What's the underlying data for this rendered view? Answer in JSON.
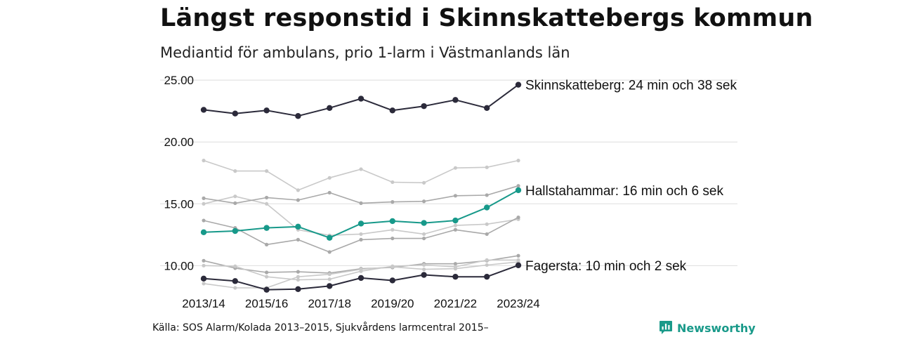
{
  "header": {
    "title": "Längst responstid i Skinnskattebergs kommun",
    "subtitle": "Mediantid för ambulans, prio 1-larm i Västmanlands län"
  },
  "footer": {
    "source": "Källa: SOS Alarm/Kolada 2013–2015, Sjukvårdens larmcentral 2015–",
    "brand": "Newsworthy"
  },
  "colors": {
    "highlight_dark": "#2b2a3a",
    "highlight_teal": "#17998a",
    "background_light": "#c9c9c9",
    "background_mid": "#a9a9a9",
    "grid": "#dddddd",
    "brand": "#1a9a8a"
  },
  "chart_data": {
    "type": "line",
    "x": [
      "2013/14",
      "2014/15",
      "2015/16",
      "2016/17",
      "2017/18",
      "2018/19",
      "2019/20",
      "2020/21",
      "2021/22",
      "2022/23",
      "2023/24"
    ],
    "x_tick_labels": [
      "2013/14",
      "2015/16",
      "2017/18",
      "2019/20",
      "2021/22",
      "2023/24"
    ],
    "y_tick_labels": [
      "10.00",
      "15.00",
      "20.00",
      "25.00"
    ],
    "ylim": [
      7.6,
      25.6
    ],
    "grid": true,
    "series": [
      {
        "values": [
          18.5,
          17.65,
          17.65,
          16.1,
          17.1,
          17.8,
          16.75,
          16.7,
          17.9,
          17.95,
          18.5
        ],
        "color": "#c9c9c9",
        "highlight": false
      },
      {
        "values": [
          15.0,
          15.6,
          15.0,
          12.9,
          12.45,
          12.55,
          12.9,
          12.55,
          13.25,
          13.35,
          13.75
        ],
        "color": "#c9c9c9",
        "highlight": false
      },
      {
        "values": [
          15.45,
          15.05,
          15.5,
          15.3,
          15.9,
          15.05,
          15.15,
          15.2,
          15.65,
          15.7,
          16.45
        ],
        "color": "#a9a9a9",
        "highlight": false
      },
      {
        "values": [
          13.65,
          13.05,
          11.7,
          12.1,
          11.1,
          12.1,
          12.2,
          12.2,
          12.9,
          12.55,
          13.9
        ],
        "color": "#a9a9a9",
        "highlight": false
      },
      {
        "values": [
          10.4,
          9.8,
          9.45,
          9.5,
          9.4,
          9.75,
          9.85,
          10.15,
          10.15,
          10.4,
          10.8
        ],
        "color": "#a9a9a9",
        "highlight": false
      },
      {
        "values": [
          10.0,
          9.95,
          9.1,
          8.85,
          8.9,
          9.55,
          9.95,
          10.05,
          9.9,
          10.45,
          10.45
        ],
        "color": "#c9c9c9",
        "highlight": false
      },
      {
        "values": [
          8.55,
          8.2,
          8.2,
          9.1,
          9.3,
          9.7,
          9.9,
          9.7,
          9.75,
          10.05,
          10.3
        ],
        "color": "#c9c9c9",
        "highlight": false
      },
      {
        "name": "Skinnskatteberg",
        "label": "Skinnskatteberg: 24 min och 38 sek",
        "values": [
          22.6,
          22.3,
          22.55,
          22.1,
          22.75,
          23.5,
          22.55,
          22.9,
          23.4,
          22.75,
          24.63
        ],
        "color": "#2b2a3a",
        "highlight": true
      },
      {
        "name": "Hallstahammar",
        "label": "Hallstahammar: 16 min och 6 sek",
        "values": [
          12.7,
          12.8,
          13.05,
          13.15,
          12.25,
          13.4,
          13.6,
          13.45,
          13.65,
          14.7,
          16.1
        ],
        "color": "#17998a",
        "highlight": true
      },
      {
        "name": "Fagersta",
        "label": "Fagersta: 10 min och 2 sek",
        "values": [
          8.95,
          8.75,
          8.05,
          8.1,
          8.35,
          9.0,
          8.8,
          9.25,
          9.1,
          9.1,
          10.03
        ],
        "color": "#2b2a3a",
        "highlight": true
      }
    ]
  }
}
